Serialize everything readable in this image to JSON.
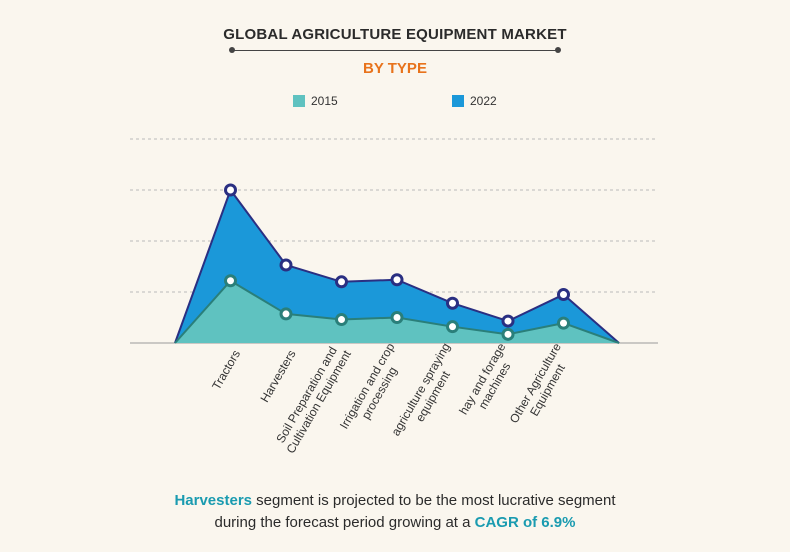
{
  "title": "GLOBAL AGRICULTURE EQUIPMENT MARKET",
  "subtitle": "BY TYPE",
  "colors": {
    "subtitle": "#e8731c",
    "series_2015_fill": "#5fc2c0",
    "series_2015_line": "#2a7f7a",
    "series_2022_fill": "#1b98d9",
    "series_2022_line": "#2a2f82",
    "grid": "#bbbbbb",
    "highlight": "#1a9bb0"
  },
  "chart_data": {
    "type": "area",
    "categories": [
      "",
      "Tractors",
      "Harvesters",
      "Soil Preparation and Cultivation Equipment",
      "Irrigation and crop processing",
      "agriculture spraying equipment",
      "hay and forage machines",
      "Other Agriculture Equipment",
      ""
    ],
    "category_lines": [
      [],
      [
        "Tractors"
      ],
      [
        "Harvesters"
      ],
      [
        "Soil Preparation and",
        "Cultivation Equipment"
      ],
      [
        "Irrigation and crop",
        "processing"
      ],
      [
        "agriculture spraying",
        "equipment"
      ],
      [
        "hay and forage",
        "machines"
      ],
      [
        "Other Agriculture",
        "Equipment"
      ],
      []
    ],
    "series": [
      {
        "name": "2015",
        "values": [
          0,
          1.22,
          0.57,
          0.46,
          0.5,
          0.32,
          0.17,
          0.39,
          0
        ]
      },
      {
        "name": "2022",
        "values": [
          0,
          3.0,
          1.53,
          1.2,
          1.24,
          0.78,
          0.43,
          0.95,
          0
        ]
      }
    ],
    "ylim": [
      0,
      4
    ],
    "grid": true,
    "legend_position": "top"
  },
  "footnote": {
    "part1": "Harvesters",
    "part2": " segment is projected to be the most lucrative segment",
    "part3": "during the forecast period growing at a ",
    "part4": "CAGR of 6.9%"
  }
}
